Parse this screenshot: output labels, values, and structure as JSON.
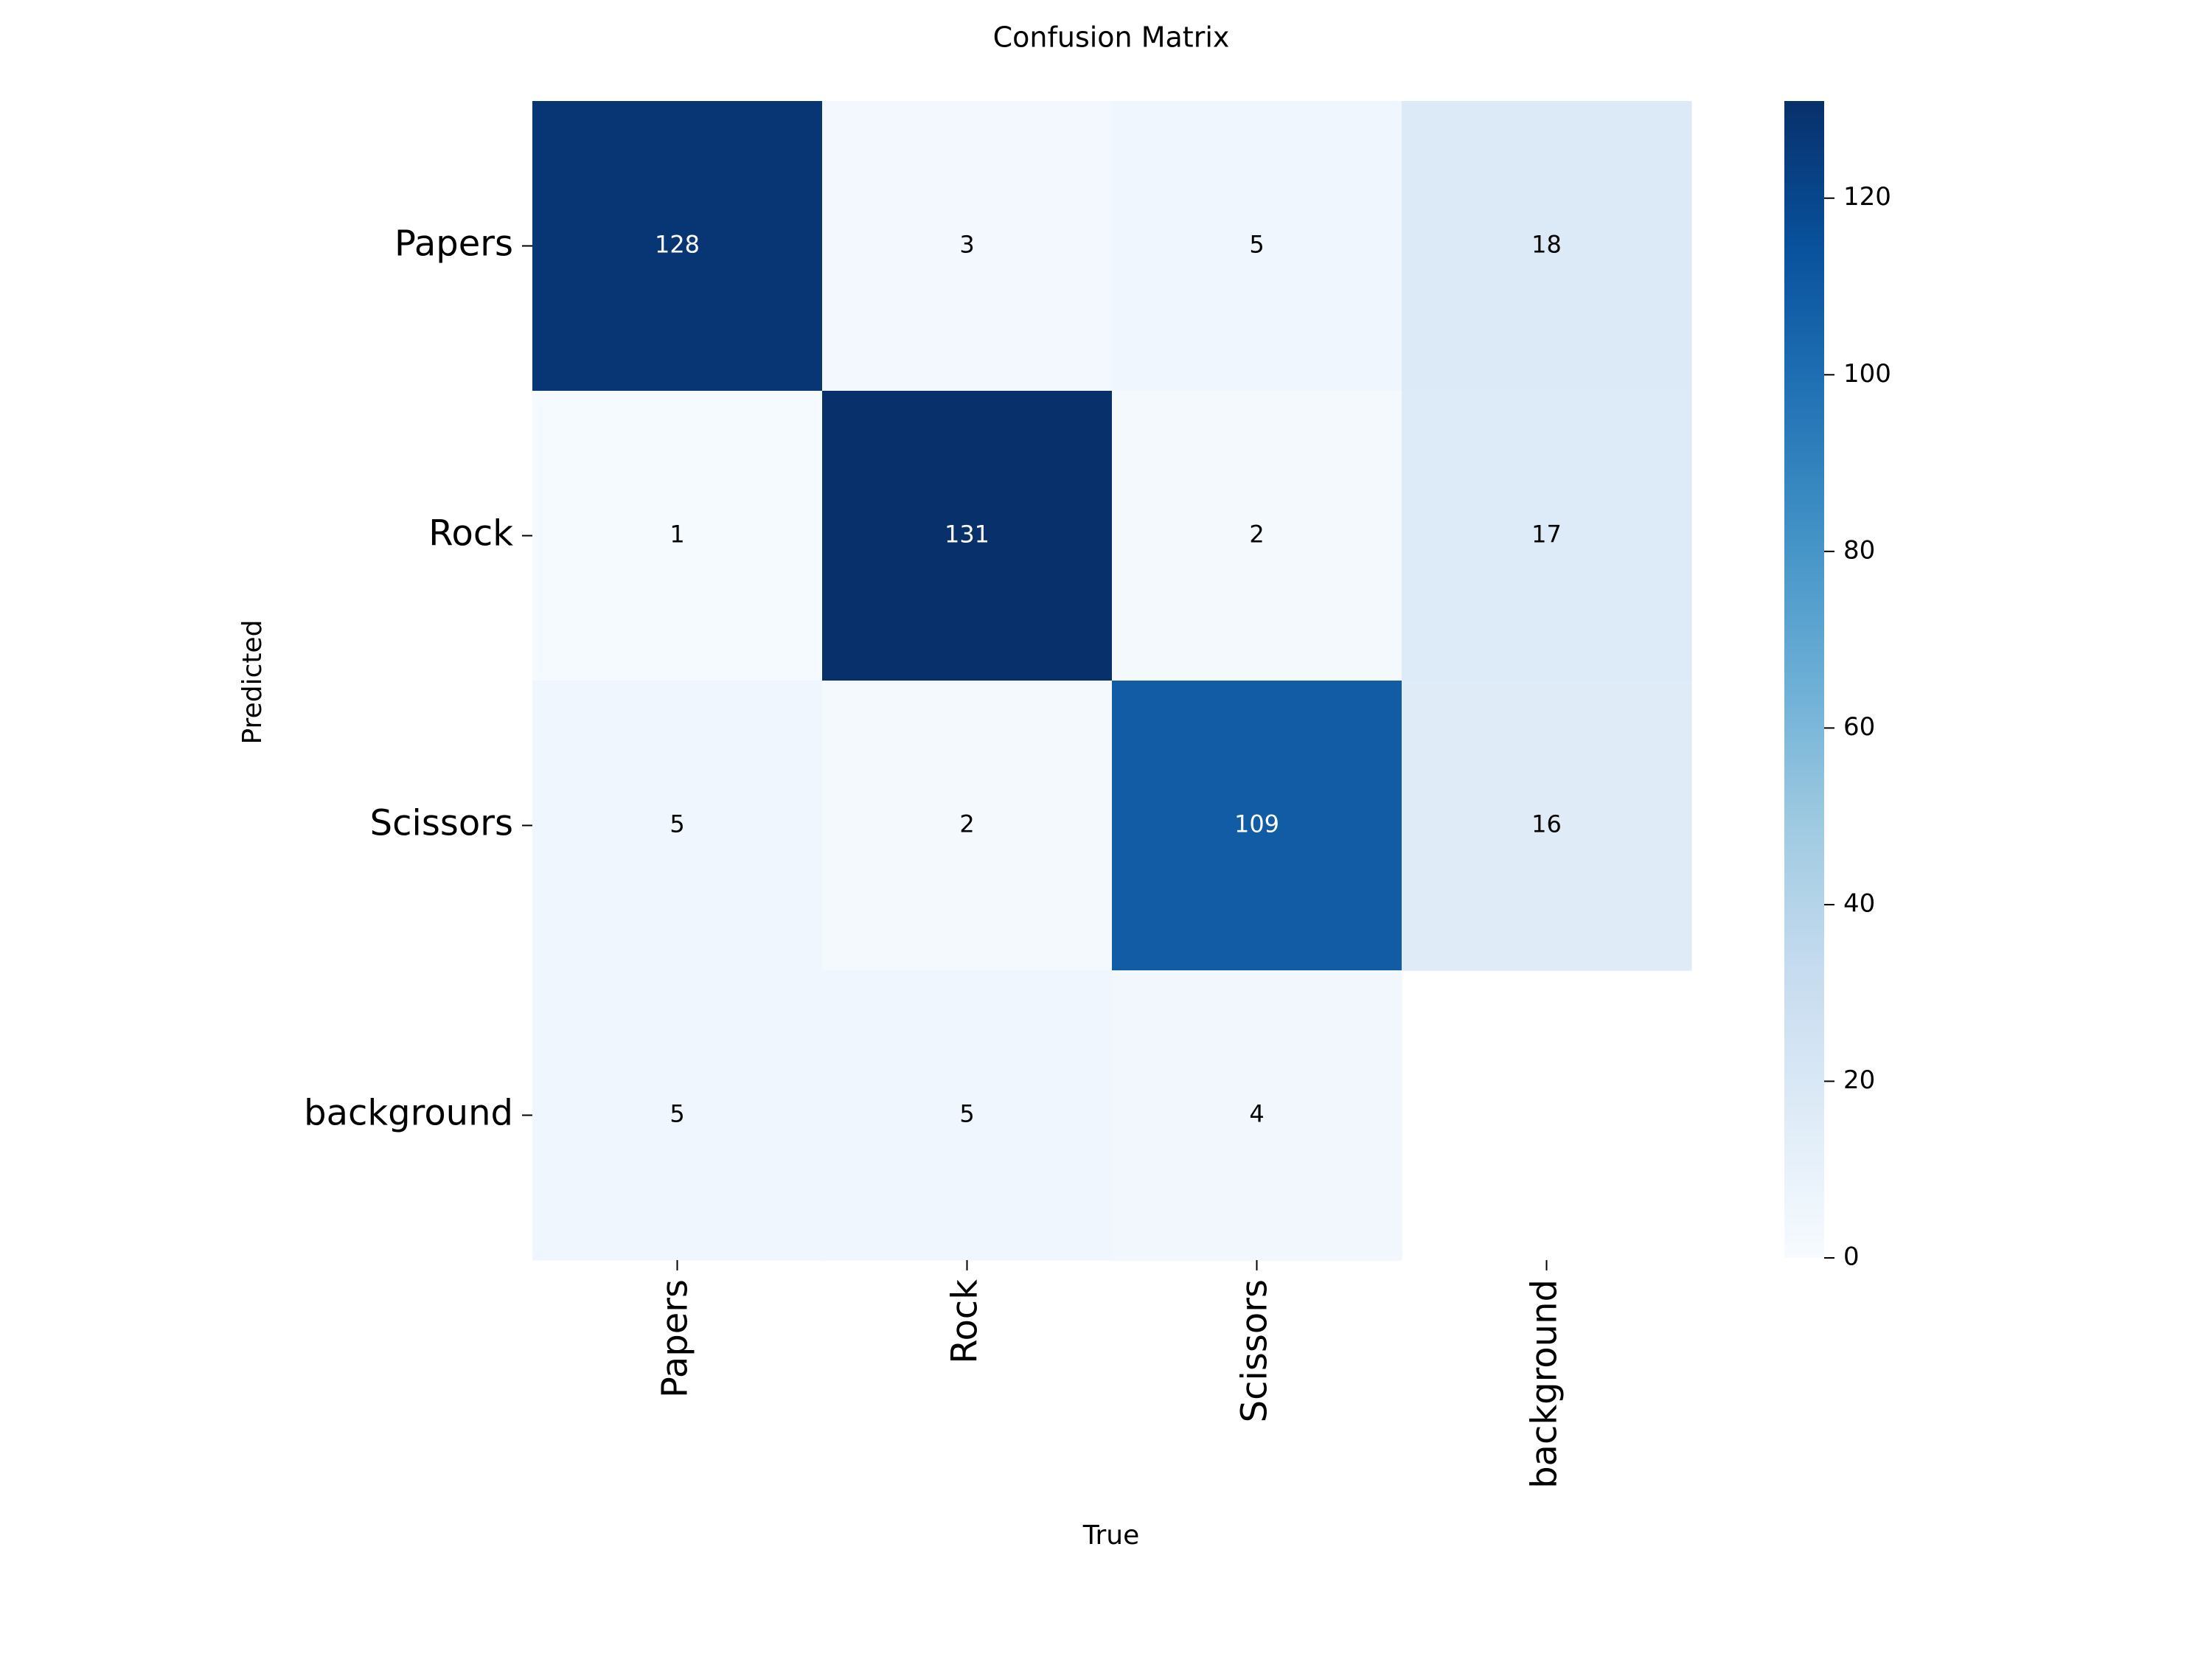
{
  "chart_data": {
    "type": "heatmap",
    "title": "Confusion Matrix",
    "xlabel": "True",
    "ylabel": "Predicted",
    "x_categories": [
      "Papers",
      "Rock",
      "Scissors",
      "background"
    ],
    "y_categories": [
      "Papers",
      "Rock",
      "Scissors",
      "background"
    ],
    "matrix": [
      [
        128,
        3,
        5,
        18
      ],
      [
        1,
        131,
        2,
        17
      ],
      [
        5,
        2,
        109,
        16
      ],
      [
        5,
        5,
        4,
        null
      ]
    ],
    "colorbar": {
      "min": 0,
      "max": 131,
      "ticks": [
        0,
        20,
        40,
        60,
        80,
        100,
        120
      ],
      "colormap": "Blues"
    },
    "colors": {
      "low": "#f7fbff",
      "high": "#08306b",
      "text_light": "#ffffff",
      "text_dark": "#000000"
    }
  }
}
